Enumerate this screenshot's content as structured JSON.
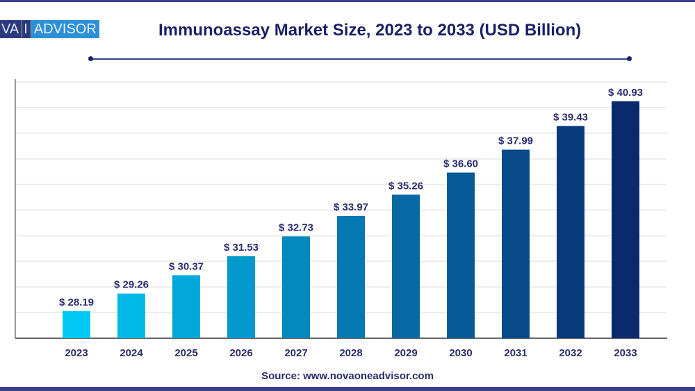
{
  "logo_text": {
    "left": "VA",
    "mid": "I",
    "right": "ADVISOR"
  },
  "chart_data": {
    "type": "bar",
    "title": "Immunoassay Market Size, 2023 to 2033 (USD Billion)",
    "categories": [
      "2023",
      "2024",
      "2025",
      "2026",
      "2027",
      "2028",
      "2029",
      "2030",
      "2031",
      "2032",
      "2033"
    ],
    "values": [
      28.19,
      29.26,
      30.37,
      31.53,
      32.73,
      33.97,
      35.26,
      36.6,
      37.99,
      39.43,
      40.93
    ],
    "data_labels": [
      "$ 28.19",
      "$ 29.26",
      "$ 30.37",
      "$ 31.53",
      "$ 32.73",
      "$ 33.97",
      "$ 35.26",
      "$ 36.60",
      "$ 37.99",
      "$ 39.43",
      "$ 40.93"
    ],
    "xlabel": "",
    "ylabel": "",
    "ylim": [
      26.55,
      42.1
    ],
    "grid": true,
    "colors": {
      "start": "#00c8f5",
      "end": "#0a2a6e"
    }
  },
  "source": "Source: www.novaoneadvisor.com"
}
